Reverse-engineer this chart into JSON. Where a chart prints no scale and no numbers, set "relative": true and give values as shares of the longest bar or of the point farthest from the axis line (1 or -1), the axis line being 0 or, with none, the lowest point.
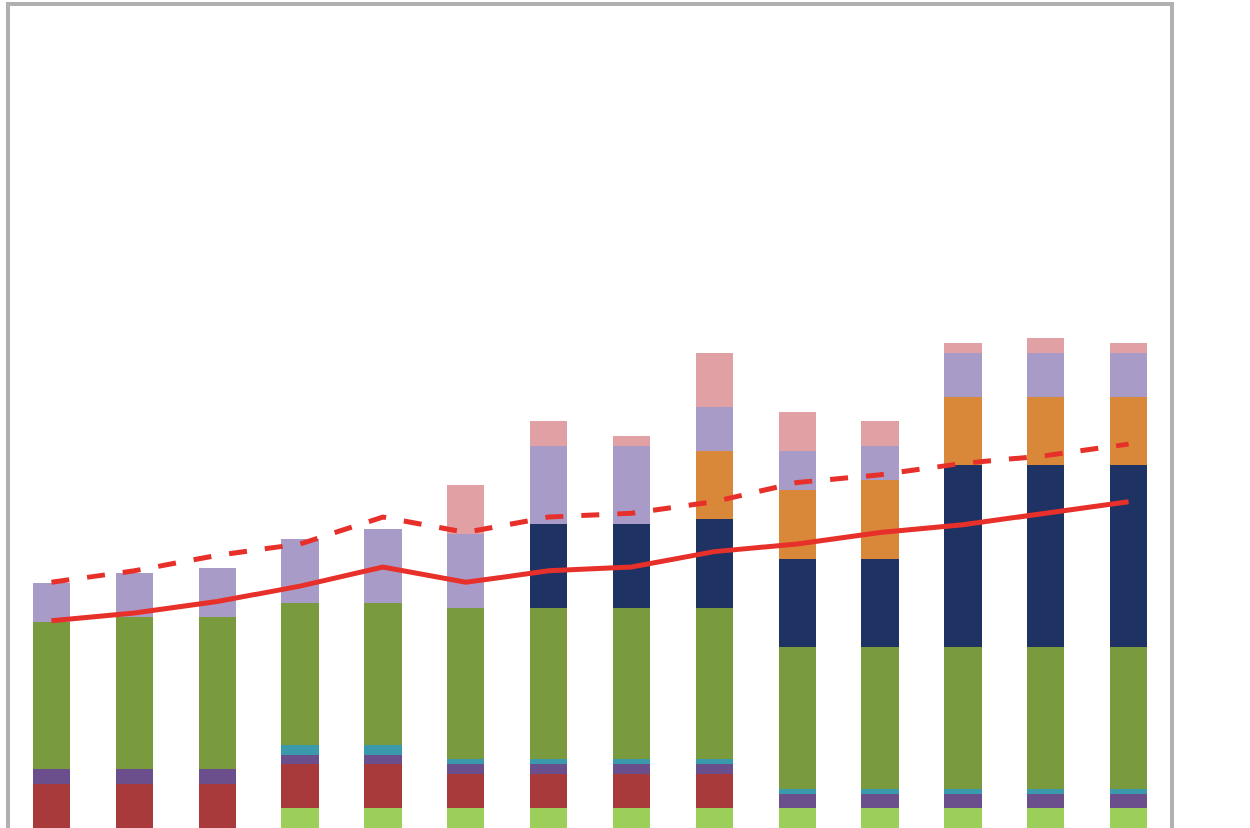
{
  "chart_data": [
    {
      "type": "bar",
      "relative": true,
      "stacked": true,
      "categories": [
        null,
        null,
        null,
        null,
        null,
        null,
        null,
        null,
        null,
        null,
        null,
        null,
        null,
        null
      ],
      "series": [
        {
          "color": "#9bcf5a",
          "values": [
            0,
            0,
            0,
            0.04,
            0.04,
            0.04,
            0.04,
            0.04,
            0.04,
            0.04,
            0.04,
            0.04,
            0.04,
            0.04
          ]
        },
        {
          "color": "#a83a3c",
          "values": [
            0.09,
            0.09,
            0.09,
            0.09,
            0.09,
            0.07,
            0.07,
            0.07,
            0.07,
            0,
            0,
            0,
            0,
            0
          ]
        },
        {
          "color": "#6a4f8c",
          "values": [
            0.03,
            0.03,
            0.03,
            0.02,
            0.02,
            0.02,
            0.02,
            0.02,
            0.02,
            0.03,
            0.03,
            0.03,
            0.03,
            0.03
          ]
        },
        {
          "color": "#3a9aac",
          "values": [
            0,
            0,
            0,
            0.02,
            0.02,
            0.01,
            0.01,
            0.01,
            0.01,
            0.01,
            0.01,
            0.01,
            0.01,
            0.01
          ]
        },
        {
          "color": "#7a9a3e",
          "values": [
            0.3,
            0.31,
            0.31,
            0.29,
            0.29,
            0.31,
            0.31,
            0.31,
            0.31,
            0.29,
            0.29,
            0.29,
            0.29,
            0.29
          ]
        },
        {
          "color": "#1f3264",
          "values": [
            0,
            0,
            0,
            0,
            0,
            0,
            0.17,
            0.17,
            0.18,
            0.18,
            0.18,
            0.37,
            0.37,
            0.37
          ]
        },
        {
          "color": "#d9883a",
          "values": [
            0,
            0,
            0,
            0,
            0,
            0,
            0,
            0,
            0.14,
            0.14,
            0.16,
            0.14,
            0.14,
            0.14
          ]
        },
        {
          "color": "#a99bc8",
          "values": [
            0.08,
            0.09,
            0.1,
            0.13,
            0.15,
            0.15,
            0.16,
            0.16,
            0.09,
            0.08,
            0.07,
            0.09,
            0.09,
            0.09
          ]
        },
        {
          "color": "#e0a0a4",
          "values": [
            0,
            0,
            0,
            0,
            0,
            0.1,
            0.05,
            0.02,
            0.11,
            0.08,
            0.05,
            0.02,
            0.03,
            0.02
          ]
        }
      ]
    },
    {
      "type": "line",
      "relative": true,
      "categories": [
        null,
        null,
        null,
        null,
        null,
        null,
        null,
        null,
        null,
        null,
        null,
        null,
        null,
        null
      ],
      "series": [
        {
          "color": "#e8302a",
          "line_style": "solid",
          "values": [
            0.54,
            0.56,
            0.59,
            0.63,
            0.68,
            0.64,
            0.67,
            0.68,
            0.72,
            0.74,
            0.77,
            0.79,
            0.82,
            0.85
          ]
        },
        {
          "color": "#e8302a",
          "line_style": "dashed",
          "values": [
            0.64,
            0.67,
            0.71,
            0.74,
            0.81,
            0.77,
            0.81,
            0.82,
            0.85,
            0.9,
            0.92,
            0.95,
            0.97,
            1.0
          ]
        }
      ]
    }
  ]
}
